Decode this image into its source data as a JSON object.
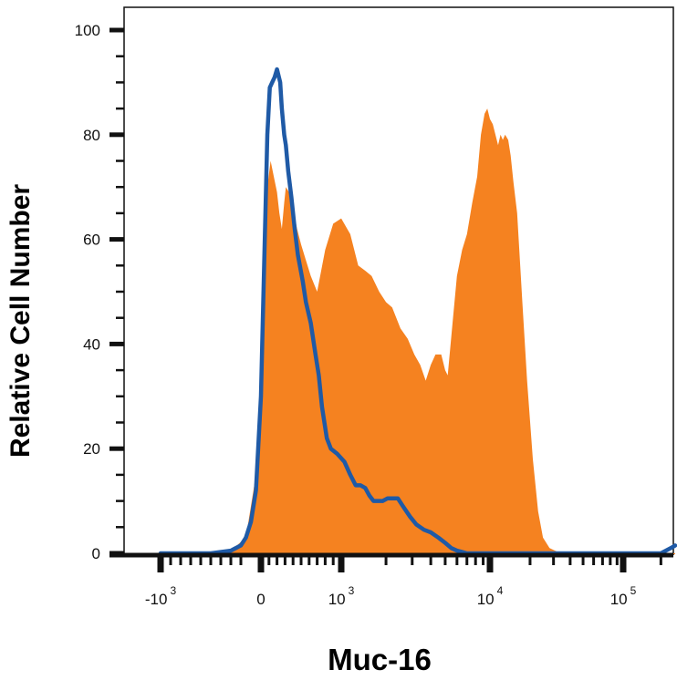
{
  "chart_data": {
    "type": "area",
    "xlabel": "Muc-16",
    "ylabel": "Relative Cell Number",
    "x_scale": "biexponential",
    "ylim": [
      0,
      100
    ],
    "y_ticks": [
      0,
      20,
      40,
      60,
      80,
      100
    ],
    "y_tick_labels": [
      "0",
      "20",
      "40",
      "60",
      "80",
      "100"
    ],
    "x_tick_labels": [
      {
        "base": "-10",
        "exp": "3",
        "value": -1000
      },
      {
        "base": "0",
        "exp": "",
        "value": 0
      },
      {
        "base": "10",
        "exp": "3",
        "value": 1000
      },
      {
        "base": "10",
        "exp": "4",
        "value": 10000
      },
      {
        "base": "10",
        "exp": "5",
        "value": 100000
      }
    ],
    "grid": false,
    "legend": "none",
    "colors": {
      "filled": "#f58220",
      "line": "#1f5aa6",
      "axis": "#111111"
    },
    "series": [
      {
        "style": "filled",
        "color": "#f58220",
        "points": [
          [
            -500,
            0
          ],
          [
            -300,
            0.5
          ],
          [
            -150,
            3
          ],
          [
            -50,
            15
          ],
          [
            0,
            35
          ],
          [
            40,
            55
          ],
          [
            80,
            70
          ],
          [
            120,
            75
          ],
          [
            160,
            72
          ],
          [
            200,
            69
          ],
          [
            230,
            65
          ],
          [
            260,
            62
          ],
          [
            290,
            67
          ],
          [
            310,
            70
          ],
          [
            350,
            69
          ],
          [
            400,
            66
          ],
          [
            450,
            62
          ],
          [
            500,
            59
          ],
          [
            560,
            56
          ],
          [
            620,
            53
          ],
          [
            700,
            50
          ],
          [
            800,
            58
          ],
          [
            900,
            63
          ],
          [
            1000,
            64
          ],
          [
            1150,
            61
          ],
          [
            1300,
            55
          ],
          [
            1450,
            54
          ],
          [
            1600,
            53
          ],
          [
            1800,
            50
          ],
          [
            2000,
            48
          ],
          [
            2200,
            47
          ],
          [
            2500,
            43
          ],
          [
            2800,
            41
          ],
          [
            3100,
            38
          ],
          [
            3400,
            36
          ],
          [
            3700,
            33
          ],
          [
            4000,
            36
          ],
          [
            4300,
            38
          ],
          [
            4700,
            38
          ],
          [
            5000,
            35
          ],
          [
            5200,
            34
          ],
          [
            5600,
            44
          ],
          [
            6000,
            53
          ],
          [
            6500,
            58
          ],
          [
            7000,
            61
          ],
          [
            7600,
            67
          ],
          [
            8200,
            72
          ],
          [
            8700,
            80
          ],
          [
            9200,
            84
          ],
          [
            9600,
            85
          ],
          [
            10000,
            83
          ],
          [
            10500,
            82
          ],
          [
            11000,
            80
          ],
          [
            11500,
            78
          ],
          [
            12000,
            80
          ],
          [
            12500,
            79
          ],
          [
            13000,
            80
          ],
          [
            13700,
            79
          ],
          [
            14300,
            76
          ],
          [
            15000,
            71
          ],
          [
            16000,
            65
          ],
          [
            17500,
            48
          ],
          [
            19000,
            33
          ],
          [
            21000,
            18
          ],
          [
            23000,
            8
          ],
          [
            25000,
            3
          ],
          [
            28000,
            1
          ],
          [
            32000,
            0.3
          ],
          [
            40000,
            0
          ],
          [
            260000,
            0
          ]
        ]
      },
      {
        "style": "line",
        "color": "#1f5aa6",
        "points": [
          [
            -1000,
            0
          ],
          [
            -500,
            0
          ],
          [
            -300,
            0.5
          ],
          [
            -200,
            1.5
          ],
          [
            -150,
            3
          ],
          [
            -100,
            6
          ],
          [
            -50,
            12
          ],
          [
            0,
            30
          ],
          [
            40,
            55
          ],
          [
            80,
            80
          ],
          [
            110,
            89
          ],
          [
            140,
            90
          ],
          [
            170,
            91
          ],
          [
            200,
            92.5
          ],
          [
            240,
            90
          ],
          [
            260,
            85
          ],
          [
            290,
            80
          ],
          [
            310,
            78
          ],
          [
            340,
            73
          ],
          [
            380,
            68
          ],
          [
            420,
            62
          ],
          [
            460,
            57
          ],
          [
            520,
            52
          ],
          [
            560,
            48
          ],
          [
            620,
            44
          ],
          [
            680,
            38
          ],
          [
            720,
            34
          ],
          [
            760,
            28
          ],
          [
            820,
            22
          ],
          [
            870,
            20
          ],
          [
            950,
            19
          ],
          [
            1050,
            17.5
          ],
          [
            1150,
            15
          ],
          [
            1250,
            13
          ],
          [
            1350,
            13
          ],
          [
            1450,
            12.5
          ],
          [
            1550,
            11
          ],
          [
            1650,
            10
          ],
          [
            1800,
            10
          ],
          [
            1900,
            10
          ],
          [
            2050,
            10.5
          ],
          [
            2200,
            10.5
          ],
          [
            2400,
            10.5
          ],
          [
            2600,
            9
          ],
          [
            2900,
            7
          ],
          [
            3200,
            5.5
          ],
          [
            3600,
            4.5
          ],
          [
            4000,
            4
          ],
          [
            4500,
            3
          ],
          [
            5000,
            2
          ],
          [
            5500,
            1
          ],
          [
            6000,
            0.5
          ],
          [
            7000,
            0
          ],
          [
            200000,
            0
          ],
          [
            240000,
            1
          ],
          [
            260000,
            1.5
          ]
        ]
      }
    ]
  }
}
